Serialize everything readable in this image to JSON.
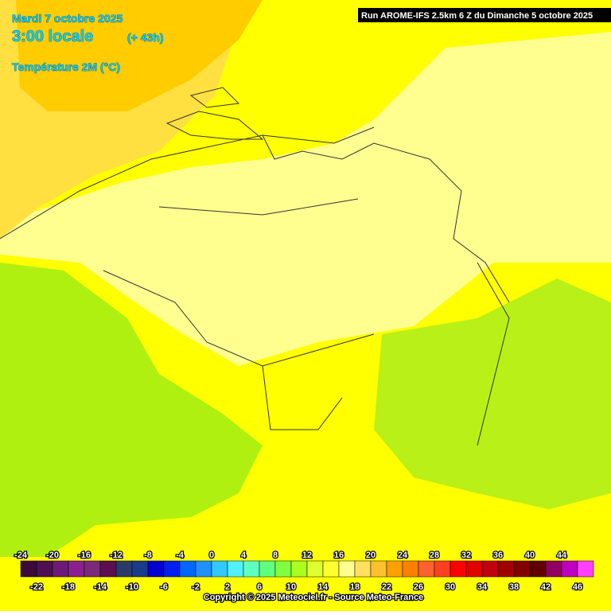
{
  "header": {
    "date": "Mardi 7 octobre 2025",
    "time": "3:00 locale",
    "lead": "(+ 43h)",
    "variable": "Température 2M (°C)",
    "run": "Run AROME-IFS 2.5km 6 Z du Dimanche 5 octobre 2025"
  },
  "legend": {
    "labels": [
      -24,
      -22,
      -20,
      -18,
      -16,
      -14,
      -12,
      -10,
      -8,
      -6,
      -4,
      -2,
      0,
      2,
      4,
      6,
      8,
      10,
      12,
      14,
      16,
      18,
      20,
      22,
      24,
      26,
      28,
      30,
      32,
      34,
      36,
      38,
      40,
      42,
      44,
      46
    ],
    "colors": [
      "#3a0a3a",
      "#4e0f55",
      "#6c1a78",
      "#8a2090",
      "#7a2a7a",
      "#5a1050",
      "#2a3a6a",
      "#1a3a8a",
      "#0000d0",
      "#0020f0",
      "#0066ff",
      "#1e90ff",
      "#30c8ff",
      "#50f0ff",
      "#60ffc0",
      "#60ff80",
      "#80ff40",
      "#a8ff20",
      "#e0ff30",
      "#ffff30",
      "#ffff90",
      "#ffe060",
      "#ffc030",
      "#ffa000",
      "#ff8000",
      "#ff6030",
      "#ff4020",
      "#ff0000",
      "#e00000",
      "#c00010",
      "#a00000",
      "#800000",
      "#600000",
      "#900060",
      "#c000c0",
      "#ff40ff"
    ]
  },
  "copyright": "Copyright © 2025 Meteociel.fr - Source Meteo-France"
}
